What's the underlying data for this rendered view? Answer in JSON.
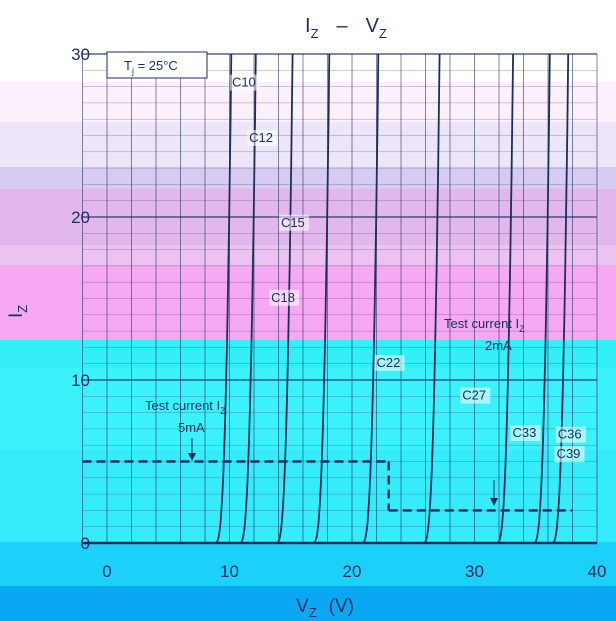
{
  "chart_data": {
    "type": "line",
    "title": "IZ  –  VZ",
    "title_main": "I",
    "title_sub": "Z",
    "title_sep": "–",
    "title_main2": "V",
    "title_sub2": "Z",
    "xlabel_main": "V",
    "xlabel_sub": "Z",
    "xlabel_unit": "(V)",
    "ylabel_main": "I",
    "ylabel_sub": "Z",
    "xlim": [
      0,
      40
    ],
    "ylim": [
      0,
      30
    ],
    "x_ticks": [
      "0",
      "10",
      "20",
      "30",
      "40"
    ],
    "y_ticks": [
      "0",
      "10",
      "20",
      "30"
    ],
    "grid": true,
    "condition_main": "T",
    "condition_sub": "j",
    "condition_rest": " = 25°C",
    "annotations": [
      {
        "line1_main": "Test current I",
        "line1_sub": "Z",
        "line2": "5mA"
      },
      {
        "line1_main": "Test current I",
        "line1_sub": "Z",
        "line2": "2mA"
      }
    ],
    "test_current_levels": [
      {
        "current_mA": 5,
        "x_range": [
          -2,
          23
        ]
      },
      {
        "current_mA": 2,
        "x_range": [
          23,
          38
        ]
      }
    ],
    "series": [
      {
        "name": "C10",
        "vz": 10.0
      },
      {
        "name": "C12",
        "vz": 12.0
      },
      {
        "name": "C15",
        "vz": 15.0
      },
      {
        "name": "C18",
        "vz": 18.0
      },
      {
        "name": "C22",
        "vz": 22.0
      },
      {
        "name": "C27",
        "vz": 27.0
      },
      {
        "name": "C33",
        "vz": 33.0
      },
      {
        "name": "C36",
        "vz": 36.0
      },
      {
        "name": "C39",
        "vz": 37.5
      }
    ],
    "colors": {
      "curve": "#1c2e5a",
      "band_pink": "#f6a9f2",
      "band_purple": "#e2b7ee",
      "band_lilac": "#d8cbf2",
      "band_cyan": "#33f1f8",
      "band_cyan_light": "#3ef4fb",
      "band_blue": "#1bd1fa",
      "band_deep_blue": "#0aa8f4"
    }
  }
}
